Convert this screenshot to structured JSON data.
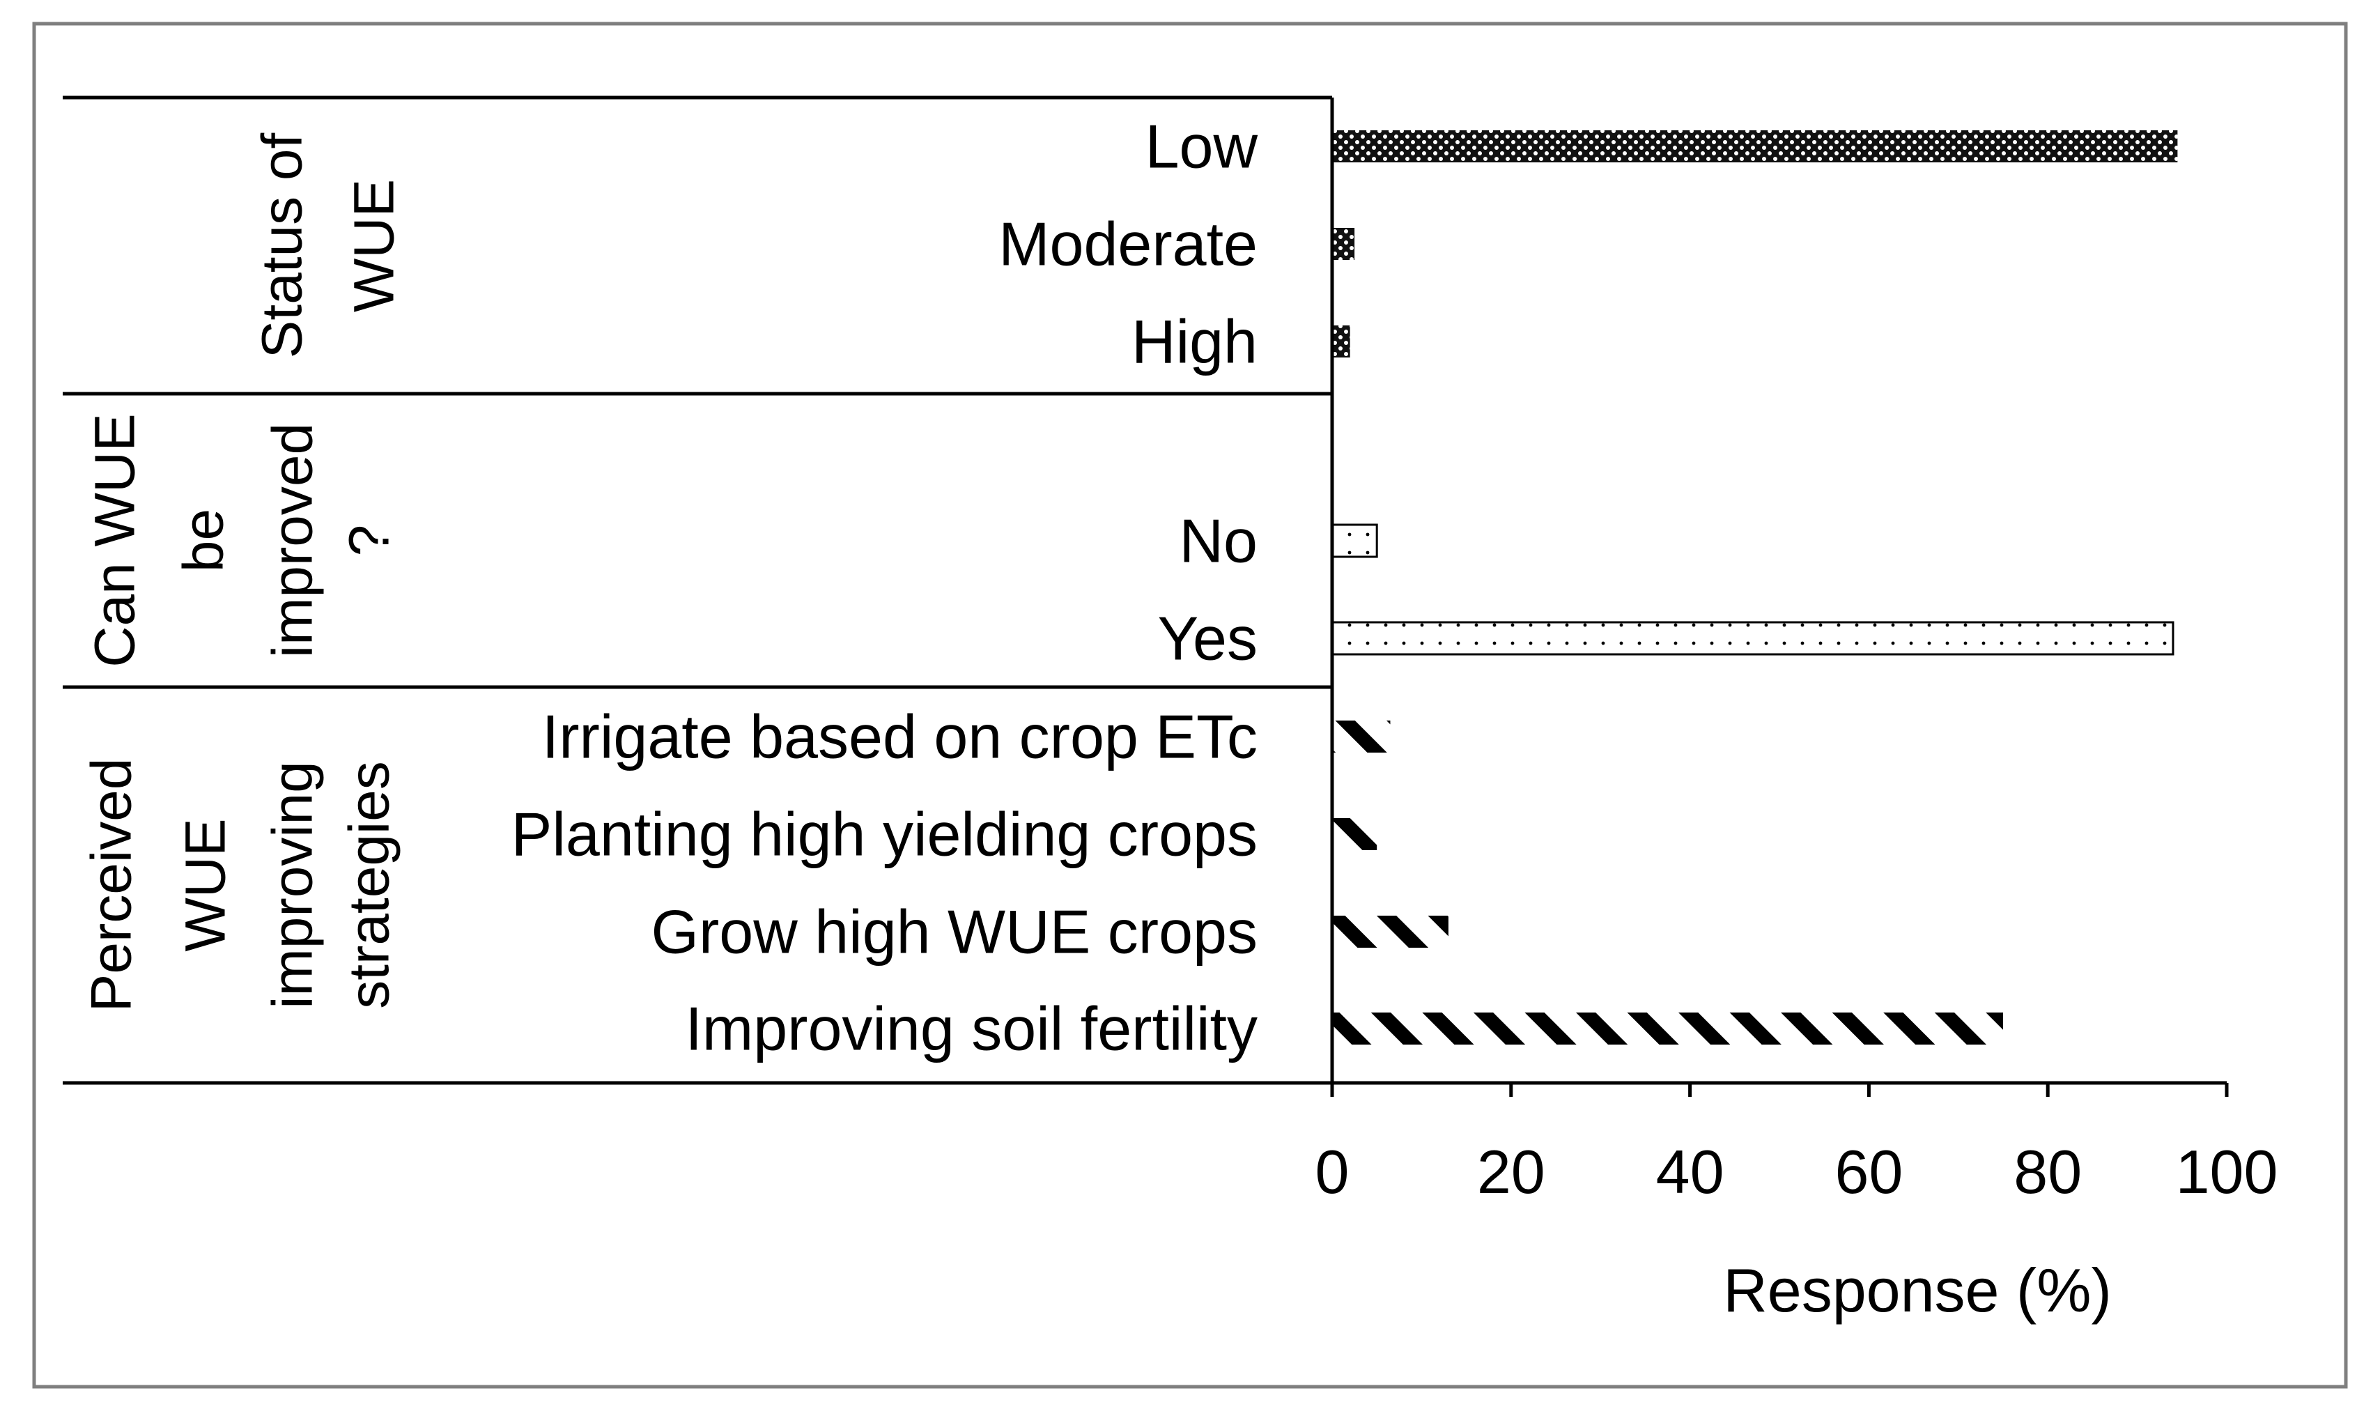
{
  "chart_data": {
    "type": "bar",
    "orientation": "horizontal",
    "xlabel": "Response (%)",
    "xlim": [
      0,
      100
    ],
    "xticks": [
      "0",
      "20",
      "40",
      "60",
      "80",
      "100"
    ],
    "grid": false,
    "groups": [
      {
        "name": "Status of WUE",
        "label_lines": [
          "Status of",
          "WUE"
        ],
        "items": [
          {
            "category": "Low",
            "value": 94.5,
            "pattern": "dense-dots"
          },
          {
            "category": "Moderate",
            "value": 2.5,
            "pattern": "dense-dots"
          },
          {
            "category": "High",
            "value": 2,
            "pattern": "dense-dots"
          }
        ]
      },
      {
        "name": "Can WUE be improved?",
        "label_lines": [
          "Can WUE",
          "be",
          "improved",
          "?"
        ],
        "items": [
          {
            "category": "No",
            "value": 5,
            "pattern": "sparse-dots"
          },
          {
            "category": "Yes",
            "value": 94,
            "pattern": "sparse-dots"
          }
        ]
      },
      {
        "name": "Perceived WUE improving strategies",
        "label_lines": [
          "Perceived",
          "WUE",
          "improving",
          "strategies"
        ],
        "items": [
          {
            "category": "Irrigate based on crop ETc",
            "value": 6.5,
            "pattern": "diagonal"
          },
          {
            "category": "Planting  high yielding crops",
            "value": 5,
            "pattern": "diagonal"
          },
          {
            "category": "Grow high WUE crops",
            "value": 13,
            "pattern": "diagonal"
          },
          {
            "category": "Improving soil fertility",
            "value": 75,
            "pattern": "diagonal"
          }
        ]
      }
    ]
  }
}
